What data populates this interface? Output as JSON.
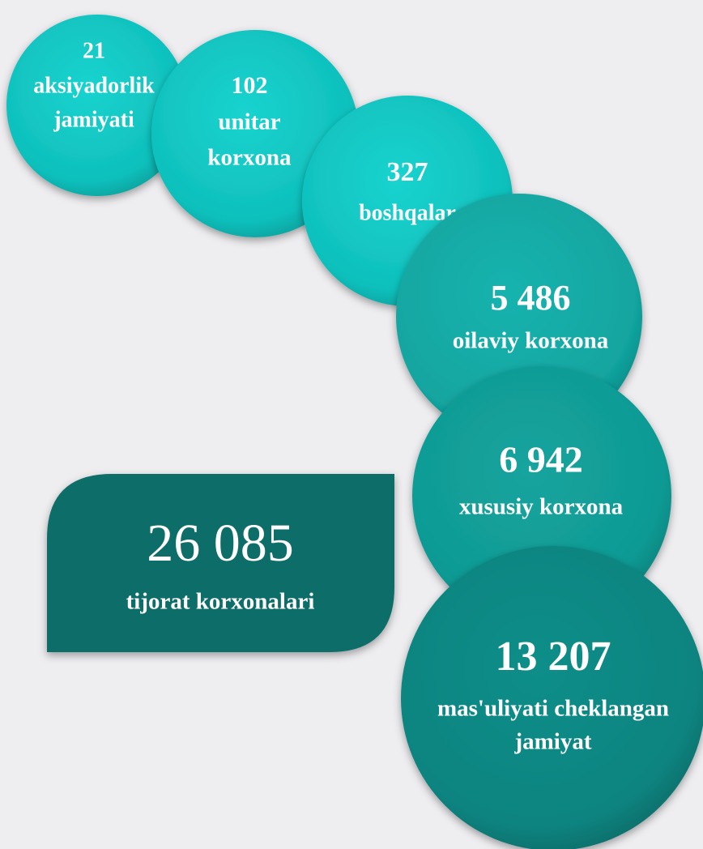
{
  "items": [
    {
      "value": "21",
      "label": [
        "aksiyadorlik",
        "jamiyati"
      ]
    },
    {
      "value": "102",
      "label": [
        "unitar",
        "korxona"
      ]
    },
    {
      "value": "327",
      "label": [
        "boshqalar"
      ]
    },
    {
      "value": "5 486",
      "label": [
        "oilaviy korxona"
      ]
    },
    {
      "value": "6 942",
      "label": [
        "xususiy korxona"
      ]
    },
    {
      "value": "13 207",
      "label": [
        "mas'uliyati cheklangan",
        "jamiyat"
      ]
    }
  ],
  "total": {
    "value": "26 085",
    "label": "tijorat korxonalari"
  }
}
